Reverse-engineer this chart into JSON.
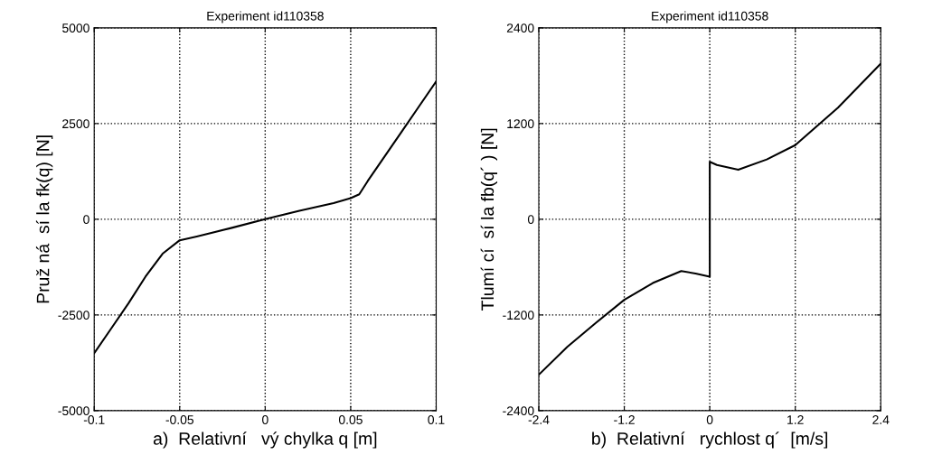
{
  "chart_data": [
    {
      "type": "line",
      "title": "Experiment id110358",
      "xlabel": "a)  Relativní   vý chylka q [m]",
      "ylabel": "Pruž ná  sí la fk(q) [N]",
      "xlim": [
        -0.1,
        0.1
      ],
      "xticks": [
        -0.1,
        -0.05,
        0,
        0.05,
        0.1
      ],
      "ylim": [
        -5000,
        5000
      ],
      "yticks": [
        -5000,
        -2500,
        0,
        2500,
        5000
      ],
      "grid": true,
      "series": [
        {
          "color": "#000000",
          "x": [
            -0.1,
            -0.09,
            -0.08,
            -0.07,
            -0.06,
            -0.05,
            -0.04,
            -0.02,
            0,
            0.02,
            0.04,
            0.05,
            0.055,
            0.06,
            0.07,
            0.08,
            0.09,
            0.1
          ],
          "values": [
            -3500,
            -2850,
            -2200,
            -1500,
            -900,
            -550,
            -450,
            -230,
            0,
            220,
            420,
            550,
            650,
            1000,
            1650,
            2300,
            2950,
            3600
          ]
        }
      ]
    },
    {
      "type": "line",
      "title": "Experiment id110358",
      "xlabel": "b)  Relativní   rychlost q´  [m/s]",
      "ylabel": "Tlumí cí  sí la fb(q´ ) [N]",
      "xlim": [
        -2.4,
        2.4
      ],
      "xticks": [
        -2.4,
        -1.2,
        0,
        1.2,
        2.4
      ],
      "ylim": [
        -2400,
        2400
      ],
      "yticks": [
        -2400,
        -1200,
        0,
        1200,
        2400
      ],
      "grid": true,
      "series": [
        {
          "color": "#000000",
          "x": [
            -2.4,
            -2.0,
            -1.6,
            -1.2,
            -0.8,
            -0.4,
            -0.2,
            0,
            0,
            0.1,
            0.4,
            0.8,
            1.2,
            1.8,
            2.4
          ],
          "values": [
            -1950,
            -1600,
            -1300,
            -1010,
            -800,
            -650,
            -680,
            -720,
            720,
            680,
            620,
            750,
            930,
            1400,
            1950
          ]
        }
      ]
    }
  ]
}
